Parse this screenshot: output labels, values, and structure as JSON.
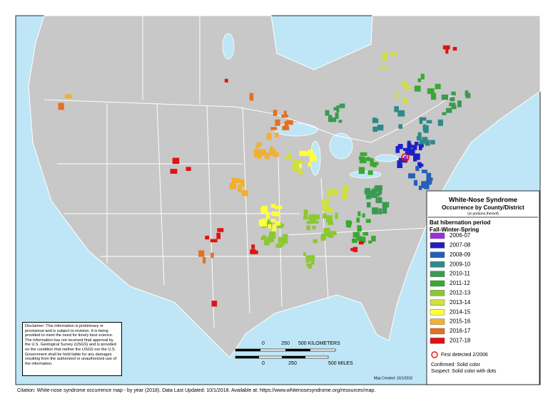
{
  "legend": {
    "title": "White-Nose Syndrome",
    "subtitle": "Occurrence by County/District",
    "subtitle_note": "(or portions thereof)",
    "period_title": "Bat hibernation period",
    "period_subtitle": "Fall-Winter-Spring",
    "items": [
      {
        "label": "2006-07",
        "color": "#9a2fe0"
      },
      {
        "label": "2007-08",
        "color": "#1f1fc8"
      },
      {
        "label": "2008-09",
        "color": "#2560b8"
      },
      {
        "label": "2009-10",
        "color": "#2e8a88"
      },
      {
        "label": "2010-11",
        "color": "#3a9a52"
      },
      {
        "label": "2011-12",
        "color": "#3aa830"
      },
      {
        "label": "2012-13",
        "color": "#8cc832"
      },
      {
        "label": "2013-14",
        "color": "#cfe040"
      },
      {
        "label": "2014-15",
        "color": "#ffff3c"
      },
      {
        "label": "2015-16",
        "color": "#f2b030"
      },
      {
        "label": "2016-17",
        "color": "#e47020"
      },
      {
        "label": "2017-18",
        "color": "#e01212"
      }
    ],
    "first_detected": "First detected 2/2006",
    "confirmed": "Confirmed:  Solid color",
    "suspect": "Suspect:  Solid color with dots"
  },
  "disclaimer": "Disclaimer: This information is preliminary or provisional and is subject to revision. It is being provided to meet the need for timely best science. The information has not received final approval by the U.S. Geological Survey (USGS) and is provided on the condition that neither the USGS nor the U.S. Government shall be held liable for any damages resulting from the authorized or unauthorized use of the information.",
  "scale_bar": {
    "km_labels": [
      "0",
      "250",
      "500 KILOMETERS"
    ],
    "mile_labels": [
      "0",
      "250",
      "500 MILES"
    ]
  },
  "map_created": "Map Created:  10/1/2018",
  "citation": "Citation: White-nose syndrome occurrence map - by year (2018).  Data Last Updated: 10/1/2018. Available at: https://www.whitenosesyndrome.org/resources/map."
}
